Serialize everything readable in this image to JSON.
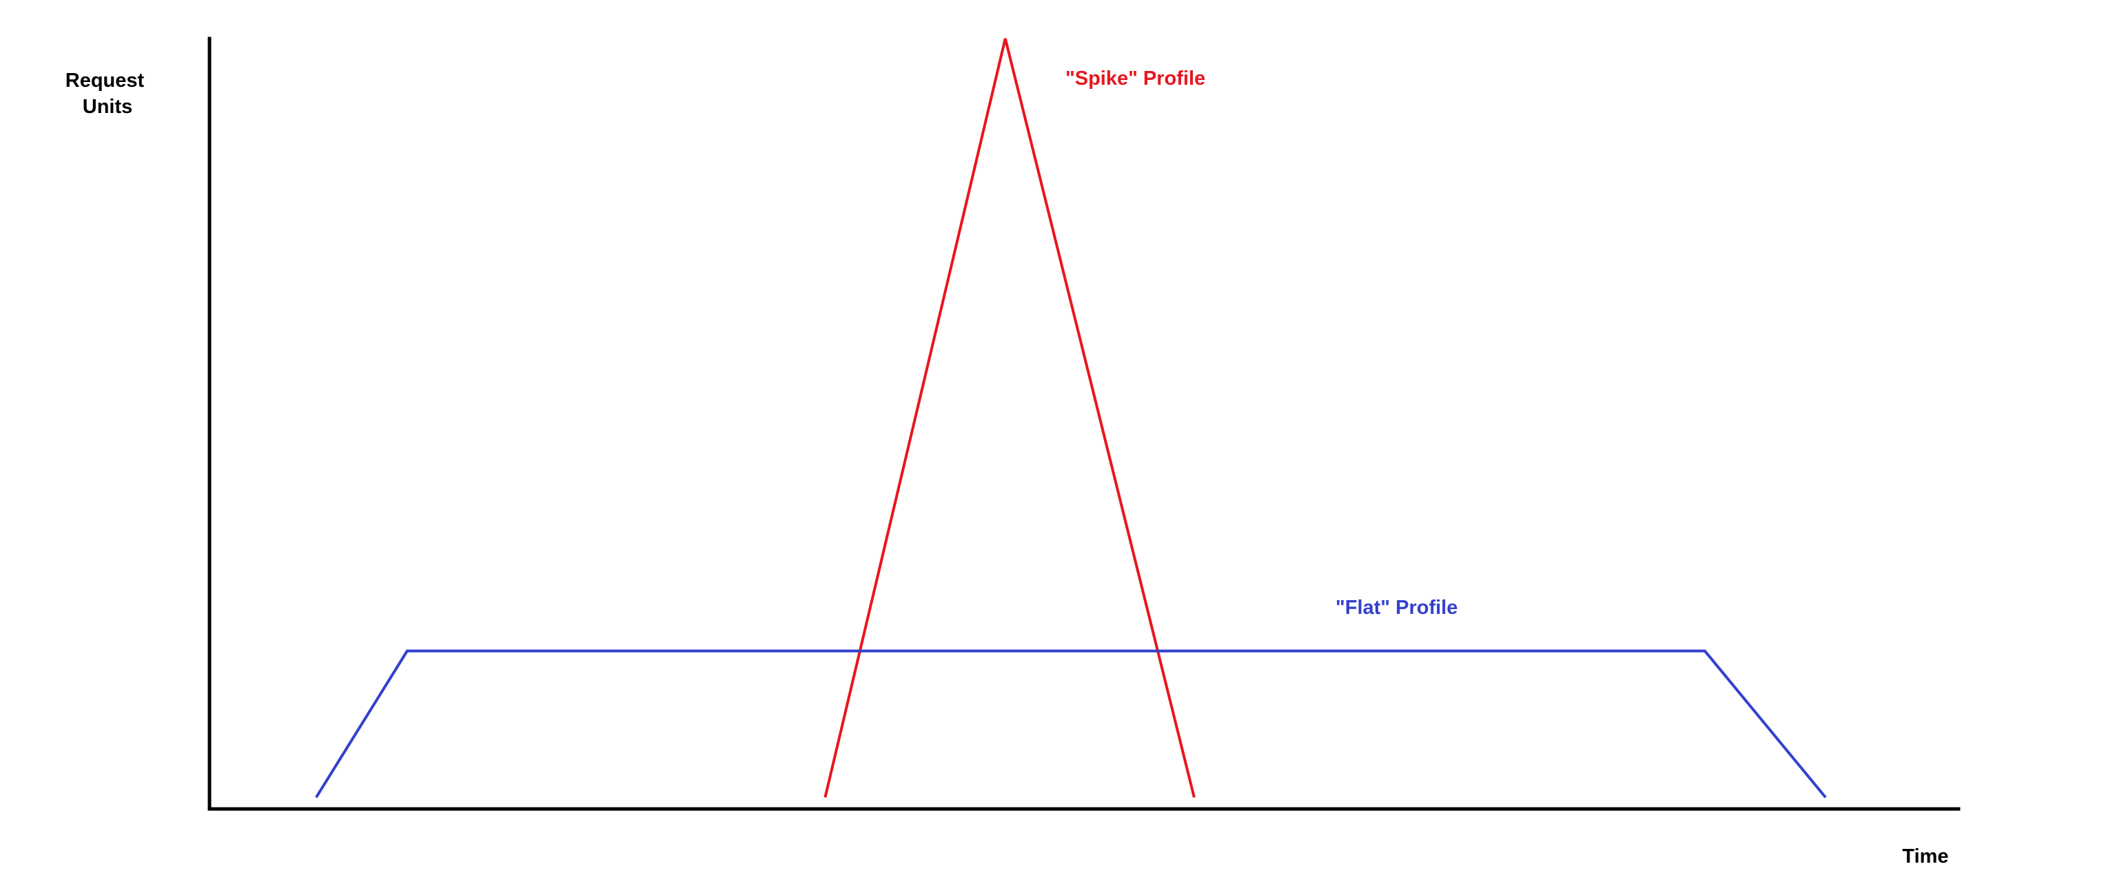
{
  "chart_data": {
    "type": "line",
    "title": "",
    "ylabel_lines": [
      "Request",
      "Units"
    ],
    "xlabel": "Time",
    "grid": false,
    "colors": {
      "axis": "#000000"
    },
    "series": [
      {
        "name": "\"Spike\" Profile",
        "color": "#e8161f",
        "points": [
          [
            0.352,
            0.015
          ],
          [
            0.455,
            1.0
          ],
          [
            0.563,
            0.015
          ]
        ]
      },
      {
        "name": "\"Flat\" Profile",
        "color": "#3440cc",
        "points": [
          [
            0.061,
            0.015
          ],
          [
            0.113,
            0.205
          ],
          [
            0.855,
            0.205
          ],
          [
            0.924,
            0.015
          ]
        ]
      }
    ]
  }
}
